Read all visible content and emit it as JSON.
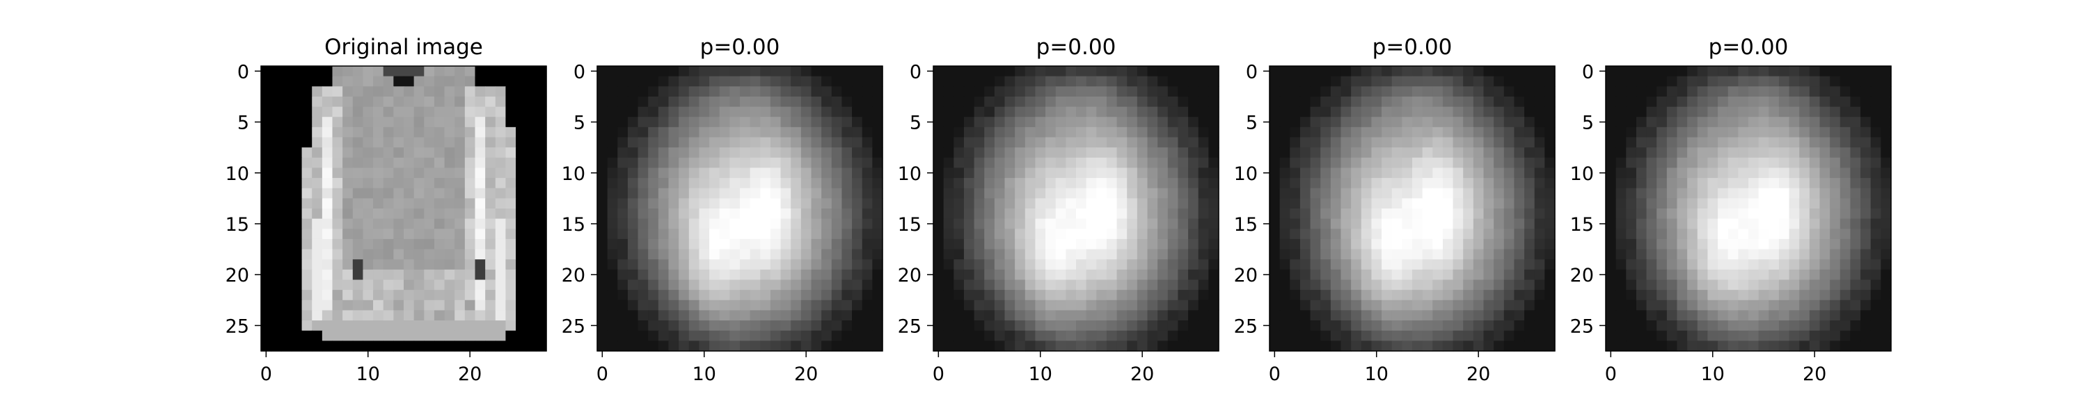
{
  "chart_data": [
    {
      "type": "heatmap",
      "title": "Original image",
      "description": "28x28 grayscale image of a long-sleeve pullover",
      "colormap": "gray",
      "xlim": [
        -0.5,
        27.5
      ],
      "ylim": [
        27.5,
        -0.5
      ],
      "xticks": [
        0,
        10,
        20
      ],
      "yticks": [
        0,
        5,
        10,
        15,
        20,
        25
      ]
    },
    {
      "type": "heatmap",
      "title": "p=0.00",
      "description": "28x28 blurry grayscale reconstruction",
      "colormap": "gray",
      "xlim": [
        -0.5,
        27.5
      ],
      "ylim": [
        27.5,
        -0.5
      ],
      "xticks": [
        0,
        10,
        20
      ],
      "yticks": [
        0,
        5,
        10,
        15,
        20,
        25
      ]
    },
    {
      "type": "heatmap",
      "title": "p=0.00",
      "description": "28x28 blurry grayscale reconstruction",
      "colormap": "gray",
      "xlim": [
        -0.5,
        27.5
      ],
      "ylim": [
        27.5,
        -0.5
      ],
      "xticks": [
        0,
        10,
        20
      ],
      "yticks": [
        0,
        5,
        10,
        15,
        20,
        25
      ]
    },
    {
      "type": "heatmap",
      "title": "p=0.00",
      "description": "28x28 blurry grayscale reconstruction",
      "colormap": "gray",
      "xlim": [
        -0.5,
        27.5
      ],
      "ylim": [
        27.5,
        -0.5
      ],
      "xticks": [
        0,
        10,
        20
      ],
      "yticks": [
        0,
        5,
        10,
        15,
        20,
        25
      ]
    },
    {
      "type": "heatmap",
      "title": "p=0.00",
      "description": "28x28 blurry grayscale reconstruction",
      "colormap": "gray",
      "xlim": [
        -0.5,
        27.5
      ],
      "ylim": [
        27.5,
        -0.5
      ],
      "xticks": [
        0,
        10,
        20
      ],
      "yticks": [
        0,
        5,
        10,
        15,
        20,
        25
      ]
    }
  ]
}
